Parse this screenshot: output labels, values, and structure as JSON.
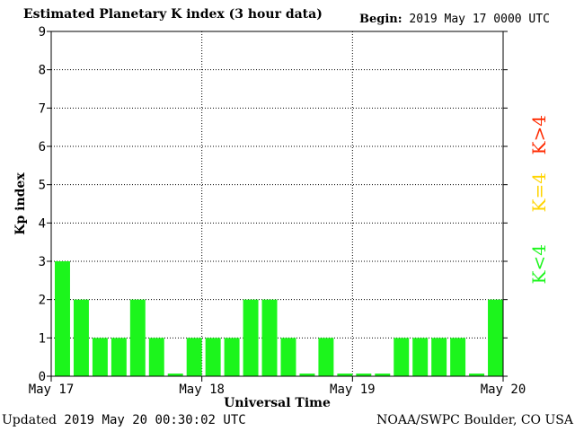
{
  "header": {
    "title": "Estimated Planetary K index (3 hour data)",
    "begin_label": "Begin:",
    "begin_value": "2019 May 17 0000 UTC"
  },
  "footer": {
    "updated_label": "Updated",
    "updated_value": "2019 May 20 00:30:02 UTC",
    "source": "NOAA/SWPC Boulder, CO USA"
  },
  "legend": [
    {
      "label": "K>4",
      "color": "#ff2a00"
    },
    {
      "label": "K=4",
      "color": "#ffd400"
    },
    {
      "label": "K<4",
      "color": "#1cf51c"
    }
  ],
  "chart_data": {
    "type": "bar",
    "xlabel": "Universal Time",
    "ylabel": "Kp index",
    "ylim": [
      0,
      9
    ],
    "yticks": [
      "0",
      "1",
      "2",
      "3",
      "4",
      "5",
      "6",
      "7",
      "8",
      "9"
    ],
    "xticks": [
      "May 17",
      "May 18",
      "May 19",
      "May 20"
    ],
    "bar_color": "#1cf51c",
    "grid": true,
    "values": [
      3,
      2,
      1,
      1,
      2,
      1,
      0.07,
      1,
      1,
      1,
      2,
      2,
      1,
      0.07,
      1,
      0.07,
      0.07,
      0.07,
      1,
      1,
      1,
      1,
      0.07,
      2
    ]
  }
}
